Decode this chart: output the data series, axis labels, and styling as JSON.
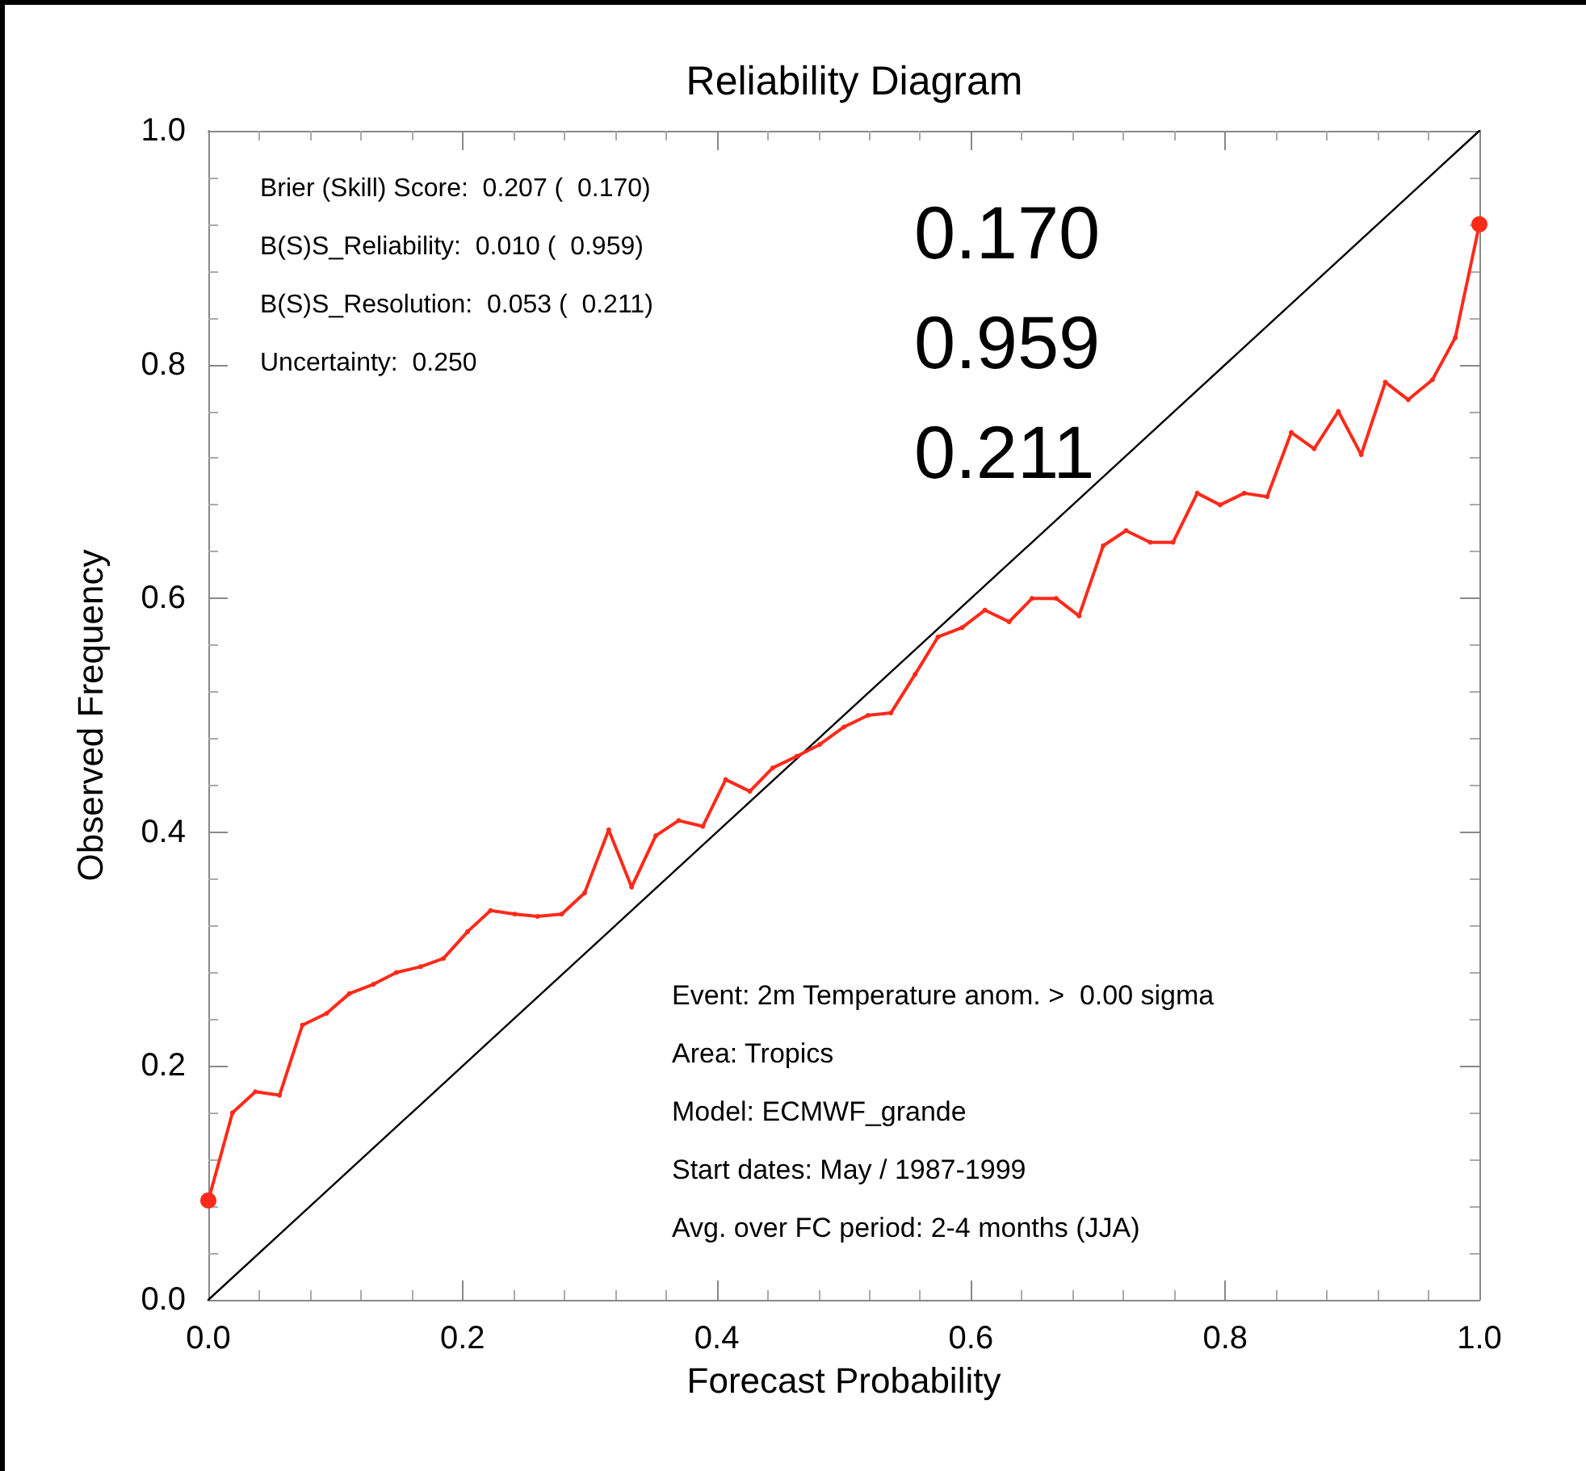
{
  "chart_data": {
    "type": "line",
    "title": "Reliability Diagram",
    "xlabel": "Forecast Probability",
    "ylabel": "Observed Frequency",
    "xlim": [
      0,
      1
    ],
    "ylim": [
      0,
      1
    ],
    "xticks": [
      {
        "value": 0,
        "label": "0.0"
      },
      {
        "value": 0.2,
        "label": "0.2"
      },
      {
        "value": 0.4,
        "label": "0.4"
      },
      {
        "value": 0.6,
        "label": "0.6"
      },
      {
        "value": 0.8,
        "label": "0.8"
      },
      {
        "value": 1,
        "label": "1.0"
      }
    ],
    "yticks": [
      {
        "value": 0,
        "label": "0.0"
      },
      {
        "value": 0.2,
        "label": "0.2"
      },
      {
        "value": 0.4,
        "label": "0.4"
      },
      {
        "value": 0.6,
        "label": "0.6"
      },
      {
        "value": 0.8,
        "label": "0.8"
      },
      {
        "value": 1,
        "label": "1.0"
      }
    ],
    "grid": false,
    "marker": "circle",
    "line_style": "solid",
    "series": [
      {
        "color": "#ff2a1a",
        "x": [
          0,
          0.019,
          0.037,
          0.056,
          0.074,
          0.093,
          0.111,
          0.13,
          0.148,
          0.167,
          0.185,
          0.204,
          0.222,
          0.241,
          0.259,
          0.278,
          0.296,
          0.315,
          0.333,
          0.352,
          0.37,
          0.389,
          0.407,
          0.426,
          0.444,
          0.463,
          0.481,
          0.5,
          0.519,
          0.537,
          0.556,
          0.574,
          0.593,
          0.611,
          0.63,
          0.648,
          0.667,
          0.685,
          0.704,
          0.722,
          0.741,
          0.759,
          0.778,
          0.796,
          0.815,
          0.833,
          0.852,
          0.87,
          0.889,
          0.907,
          0.926,
          0.944,
          0.963,
          0.981,
          1
        ],
        "values": [
          0.085,
          0.16,
          0.178,
          0.175,
          0.235,
          0.245,
          0.262,
          0.27,
          0.28,
          0.285,
          0.292,
          0.315,
          0.333,
          0.33,
          0.328,
          0.33,
          0.348,
          0.402,
          0.353,
          0.397,
          0.41,
          0.405,
          0.445,
          0.435,
          0.455,
          0.465,
          0.475,
          0.49,
          0.5,
          0.502,
          0.535,
          0.567,
          0.575,
          0.59,
          0.58,
          0.6,
          0.6,
          0.585,
          0.645,
          0.658,
          0.648,
          0.648,
          0.69,
          0.68,
          0.69,
          0.687,
          0.742,
          0.728,
          0.76,
          0.723,
          0.785,
          0.77,
          0.787,
          0.823,
          0.92
        ]
      },
      {
        "color": "#000000",
        "marker": "none",
        "x": [
          0,
          1
        ],
        "values": [
          0,
          1
        ]
      }
    ],
    "annotations": [
      "Brier (Skill) Score:  0.207 (  0.170)",
      "B(S)S_Reliability:  0.010 (  0.959)",
      "B(S)S_Resolution:  0.053 (  0.211)",
      "Uncertainty:  0.250",
      "0.170",
      "0.959",
      "0.211",
      "Event: 2m Temperature anom. >  0.00 sigma",
      "Area: Tropics",
      "Model: ECMWF_grande",
      "Start dates: May / 1987-1999",
      "Avg. over FC period: 2-4 months (JJA)"
    ]
  }
}
